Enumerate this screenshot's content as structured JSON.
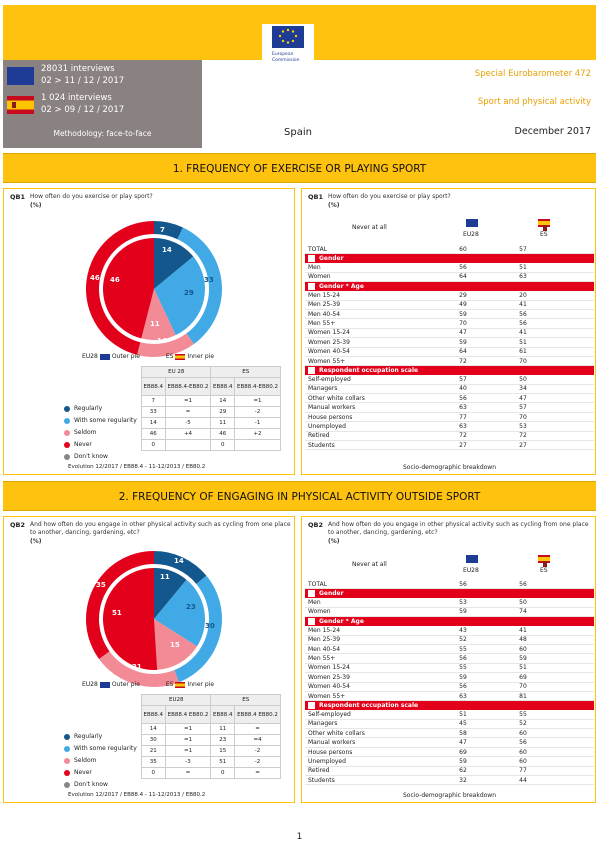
{
  "header": {
    "logo_line1": "European",
    "logo_line2": "Commission",
    "eu_interviews": "28031 interviews",
    "eu_dates": "02 > 11 / 12 / 2017",
    "es_interviews": "1 024 interviews",
    "es_dates": "02 > 09 / 12 / 2017",
    "methodology": "Methodology: face-to-face",
    "survey": "Special Eurobarometer 472",
    "topic": "Sport and physical activity",
    "country": "Spain",
    "date": "December 2017"
  },
  "colors": {
    "regularly": "#14578c",
    "some_regularity": "#41aae6",
    "seldom": "#f28b95",
    "never": "#e2001a",
    "dont_know": "#888888",
    "band": "#FFC20E"
  },
  "sections": [
    {
      "title": "1. FREQUENCY OF EXERCISE OR PLAYING SPORT",
      "left": {
        "qnum": "QB1",
        "question": "How often do you exercise or play sport?",
        "unit": "(%)",
        "outer_labels": [
          "7",
          "33",
          "14",
          "46"
        ],
        "inner_labels": [
          "14",
          "29",
          "11",
          "46"
        ],
        "legend_outer": "EU28",
        "legend_outer_suffix": "Outer pie",
        "legend_inner": "ES",
        "legend_inner_suffix": "Inner pie",
        "table_groups": [
          "EU 28",
          "ES"
        ],
        "table_cols": [
          "EB88.4",
          "EB88.4-EB80.2",
          "EB88.4",
          "EB88.4-EB80.2"
        ],
        "rows": [
          {
            "label": "Regularly",
            "cells": [
              "7",
              "=1",
              "14",
              "=1"
            ]
          },
          {
            "label": "With some regularity",
            "cells": [
              "33",
              "=",
              "29",
              "-2"
            ]
          },
          {
            "label": "Seldom",
            "cells": [
              "14",
              "-5",
              "11",
              "-1"
            ]
          },
          {
            "label": "Never",
            "cells": [
              "46",
              "+4",
              "46",
              "+2"
            ]
          },
          {
            "label": "Don't know",
            "cells": [
              "0",
              "",
              "0",
              ""
            ]
          }
        ],
        "evolution": "Evolution 12/2017 / EB88.4 - 11-12/2013 / EB80.2"
      },
      "right": {
        "qnum": "QB1",
        "question": "How often do you exercise or play sport?",
        "unit": "(%)",
        "answer_label": "Never at all",
        "col_eu": "EU28",
        "col_es": "ES",
        "total": {
          "label": "TOTAL",
          "eu": "60",
          "es": "57"
        },
        "groups": [
          {
            "name": "Gender",
            "rows": [
              [
                "Men",
                "56",
                "51"
              ],
              [
                "Women",
                "64",
                "63"
              ]
            ]
          },
          {
            "name": "Gender * Age",
            "rows": [
              [
                "Men 15-24",
                "29",
                "20"
              ],
              [
                "Men 25-39",
                "49",
                "41"
              ],
              [
                "Men 40-54",
                "59",
                "56"
              ],
              [
                "Men 55+",
                "70",
                "56"
              ],
              [
                "Women 15-24",
                "47",
                "41"
              ],
              [
                "Women 25-39",
                "59",
                "51"
              ],
              [
                "Women 40-54",
                "64",
                "61"
              ],
              [
                "Women 55+",
                "72",
                "70"
              ]
            ]
          },
          {
            "name": "Respondent occupation scale",
            "rows": [
              [
                "Self-employed",
                "57",
                "50"
              ],
              [
                "Managers",
                "40",
                "34"
              ],
              [
                "Other white collars",
                "56",
                "47"
              ],
              [
                "Manual workers",
                "63",
                "57"
              ],
              [
                "House persons",
                "77",
                "70"
              ],
              [
                "Unemployed",
                "63",
                "53"
              ],
              [
                "Retired",
                "72",
                "72"
              ],
              [
                "Students",
                "27",
                "27"
              ]
            ]
          }
        ],
        "footer": "Socio-demographic breakdown"
      }
    },
    {
      "title": "2. FREQUENCY OF ENGAGING IN PHYSICAL ACTIVITY OUTSIDE SPORT",
      "left": {
        "qnum": "QB2",
        "question": "And how often do you engage in other physical activity such as cycling from one place to another, dancing, gardening, etc?",
        "unit": "(%)",
        "outer_labels": [
          "14",
          "30",
          "21",
          "35"
        ],
        "inner_labels": [
          "11",
          "23",
          "15",
          "51"
        ],
        "legend_outer": "EU28",
        "legend_outer_suffix": "Outer pie",
        "legend_inner": "ES",
        "legend_inner_suffix": "Inner pie",
        "table_groups": [
          "EU28",
          "ES"
        ],
        "table_cols": [
          "EB88.4",
          "EB88.4 EB80.2",
          "EB88.4",
          "EB88.4 EB80.2"
        ],
        "rows": [
          {
            "label": "Regularly",
            "cells": [
              "14",
              "=1",
              "11",
              "="
            ]
          },
          {
            "label": "With some regularity",
            "cells": [
              "30",
              "=1",
              "23",
              "=4"
            ]
          },
          {
            "label": "Seldom",
            "cells": [
              "21",
              "=1",
              "15",
              "-2"
            ]
          },
          {
            "label": "Never",
            "cells": [
              "35",
              "-3",
              "51",
              "-2"
            ]
          },
          {
            "label": "Don't know",
            "cells": [
              "0",
              "=",
              "0",
              "="
            ]
          }
        ],
        "evolution": "Evolution 12/2017 / EB88.4 - 11-12/2013 / EB80.2"
      },
      "right": {
        "qnum": "QB2",
        "question": "And how often do you engage in other physical activity such as cycling from one place to another, dancing, gardening, etc?",
        "unit": "(%)",
        "answer_label": "Never at all",
        "col_eu": "EU28",
        "col_es": "ES",
        "total": {
          "label": "TOTAL",
          "eu": "56",
          "es": "56"
        },
        "groups": [
          {
            "name": "Gender",
            "rows": [
              [
                "Men",
                "53",
                "50"
              ],
              [
                "Women",
                "59",
                "74"
              ]
            ]
          },
          {
            "name": "Gender * Age",
            "rows": [
              [
                "Men 15-24",
                "43",
                "41"
              ],
              [
                "Men 25-39",
                "52",
                "48"
              ],
              [
                "Men 40-54",
                "55",
                "60"
              ],
              [
                "Men 55+",
                "56",
                "59"
              ],
              [
                "Women 15-24",
                "55",
                "51"
              ],
              [
                "Women 25-39",
                "59",
                "69"
              ],
              [
                "Women 40-54",
                "56",
                "70"
              ],
              [
                "Women 55+",
                "63",
                "81"
              ]
            ]
          },
          {
            "name": "Respondent occupation scale",
            "rows": [
              [
                "Self-employed",
                "51",
                "55"
              ],
              [
                "Managers",
                "45",
                "52"
              ],
              [
                "Other white collars",
                "58",
                "60"
              ],
              [
                "Manual workers",
                "47",
                "56"
              ],
              [
                "House persons",
                "69",
                "60"
              ],
              [
                "Unemployed",
                "59",
                "60"
              ],
              [
                "Retired",
                "62",
                "77"
              ],
              [
                "Students",
                "32",
                "44"
              ]
            ]
          }
        ],
        "footer": "Socio-demographic breakdown"
      }
    }
  ],
  "page_number": "1"
}
